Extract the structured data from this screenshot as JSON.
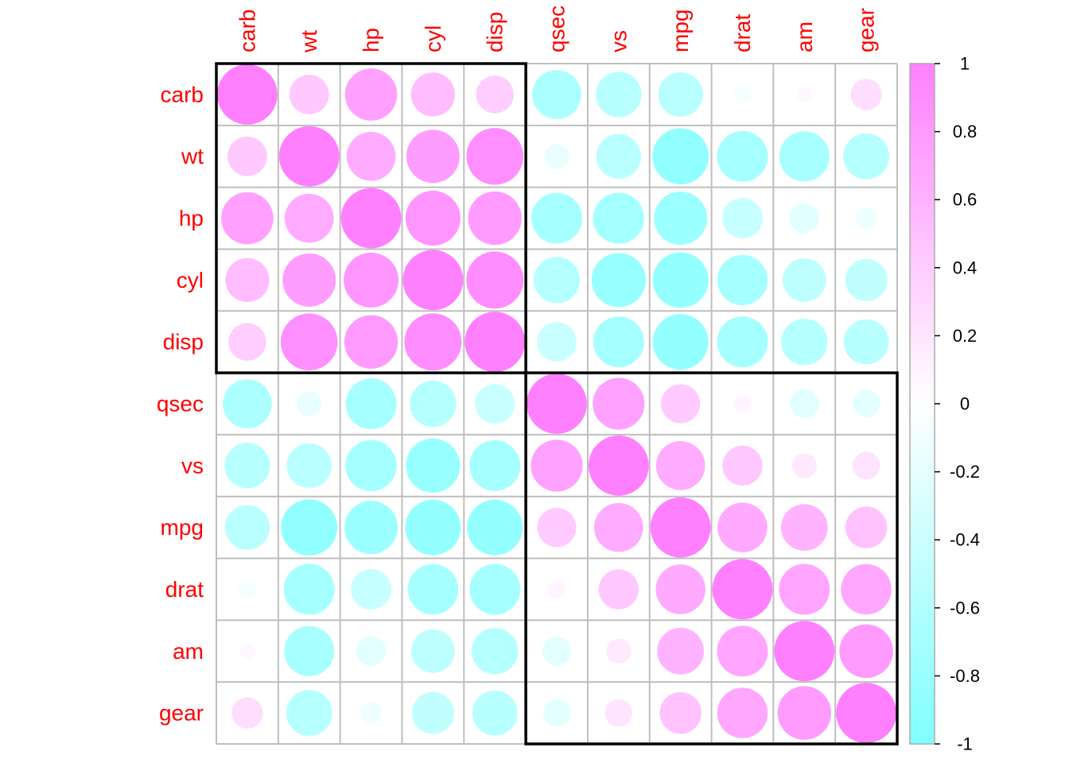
{
  "chart_data": {
    "type": "heatmap",
    "variables": [
      "carb",
      "wt",
      "hp",
      "cyl",
      "disp",
      "qsec",
      "vs",
      "mpg",
      "drat",
      "am",
      "gear"
    ],
    "matrix": [
      [
        1.0,
        0.43,
        0.75,
        0.53,
        0.39,
        -0.66,
        -0.57,
        -0.55,
        -0.09,
        0.06,
        0.27
      ],
      [
        0.43,
        1.0,
        0.66,
        0.78,
        0.89,
        -0.17,
        -0.55,
        -0.87,
        -0.71,
        -0.69,
        -0.58
      ],
      [
        0.75,
        0.66,
        1.0,
        0.83,
        0.79,
        -0.71,
        -0.72,
        -0.78,
        -0.45,
        -0.24,
        -0.13
      ],
      [
        0.53,
        0.78,
        0.83,
        1.0,
        0.9,
        -0.59,
        -0.81,
        -0.85,
        -0.7,
        -0.52,
        -0.49
      ],
      [
        0.39,
        0.89,
        0.79,
        0.9,
        1.0,
        -0.43,
        -0.71,
        -0.85,
        -0.71,
        -0.59,
        -0.56
      ],
      [
        -0.66,
        -0.17,
        -0.71,
        -0.59,
        -0.43,
        1.0,
        0.74,
        0.42,
        0.09,
        -0.23,
        -0.21
      ],
      [
        -0.57,
        -0.55,
        -0.72,
        -0.81,
        -0.71,
        0.74,
        1.0,
        0.66,
        0.44,
        0.17,
        0.21
      ],
      [
        -0.55,
        -0.87,
        -0.78,
        -0.85,
        -0.85,
        0.42,
        0.66,
        1.0,
        0.68,
        0.6,
        0.48
      ],
      [
        -0.09,
        -0.71,
        -0.45,
        -0.7,
        -0.71,
        0.09,
        0.44,
        0.68,
        1.0,
        0.71,
        0.7
      ],
      [
        0.06,
        -0.69,
        -0.24,
        -0.52,
        -0.59,
        -0.23,
        0.17,
        0.6,
        0.71,
        1.0,
        0.79
      ],
      [
        0.27,
        -0.58,
        -0.13,
        -0.49,
        -0.56,
        -0.21,
        0.21,
        0.48,
        0.7,
        0.79,
        1.0
      ]
    ],
    "clusters": [
      {
        "start": 0,
        "end": 4
      },
      {
        "start": 5,
        "end": 10
      }
    ],
    "colorbar_ticks": [
      "1",
      "0.8",
      "0.6",
      "0.4",
      "0.2",
      "0",
      "-0.2",
      "-0.4",
      "-0.6",
      "-0.8",
      "-1"
    ],
    "colorbar_values": [
      1,
      0.8,
      0.6,
      0.4,
      0.2,
      0,
      -0.2,
      -0.4,
      -0.6,
      -0.8,
      -1
    ],
    "color_scale": {
      "negative": "#80FFFF",
      "zero": "#FFFFFF",
      "positive": "#FF80FF"
    },
    "label_color": "#FF0000",
    "grid": true,
    "legend_position": "right"
  }
}
